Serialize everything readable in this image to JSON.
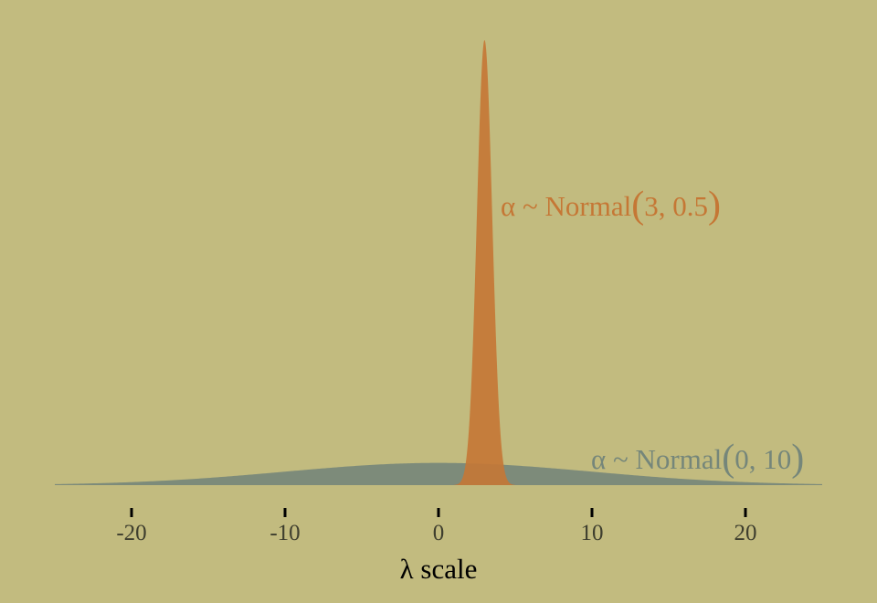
{
  "chart_data": {
    "type": "area",
    "xlabel": "λ scale",
    "xlim": [
      -25,
      25
    ],
    "x_ticks": [
      -20,
      -10,
      0,
      10,
      20
    ],
    "x_tick_labels": [
      "-20",
      "-10",
      "0",
      "10",
      "20"
    ],
    "grid": false,
    "background": "#c2bb7f",
    "series": [
      {
        "name_parts": [
          "α ~ Normal",
          "(",
          "0, 10",
          ")"
        ],
        "distribution": "normal",
        "mean": 0,
        "sd": 10,
        "color": "#75867a"
      },
      {
        "name_parts": [
          "α ~ Normal",
          "(",
          "3, 0.5",
          ")"
        ],
        "distribution": "normal",
        "mean": 3,
        "sd": 0.5,
        "color": "#c57735"
      }
    ]
  }
}
